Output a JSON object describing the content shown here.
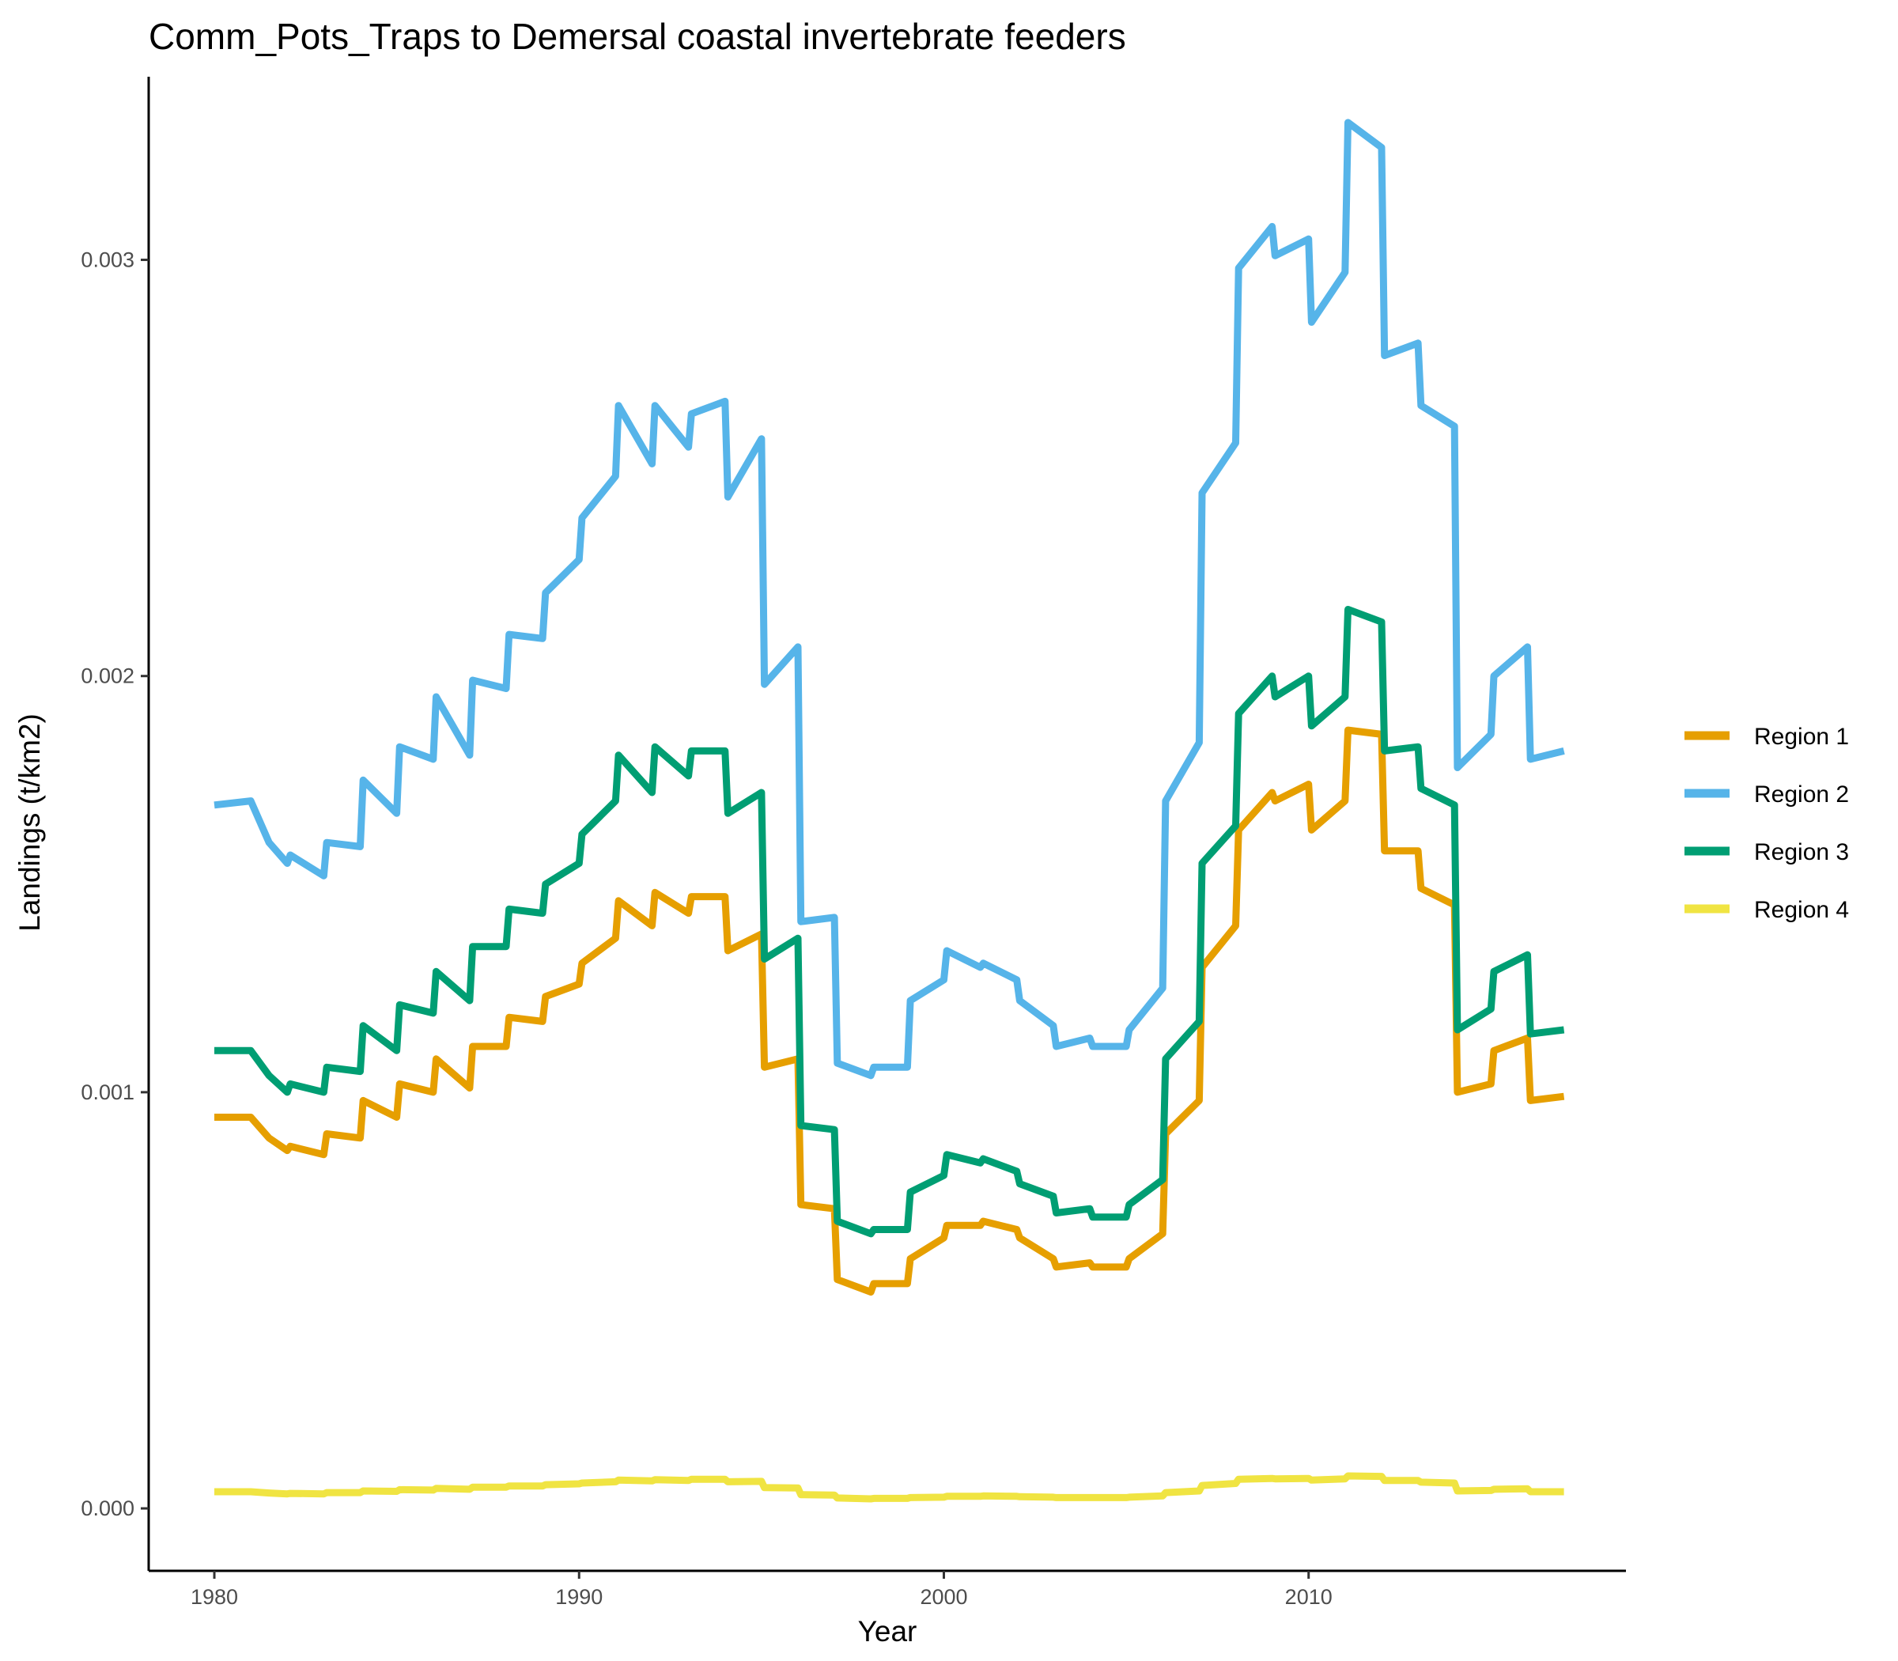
{
  "chart_data": {
    "type": "line",
    "title": "Comm_Pots_Traps to Demersal coastal invertebrate feeders",
    "xlabel": "Year",
    "ylabel": "Landings (t/km2)",
    "xlim": [
      1978.2,
      2018.7
    ],
    "ylim": [
      -0.00015,
      0.00344
    ],
    "x_ticks": [
      1980,
      1990,
      2000,
      2010
    ],
    "x_tick_labels": [
      "1980",
      "1990",
      "2000",
      "2010"
    ],
    "y_ticks": [
      0,
      0.001,
      0.002,
      0.003
    ],
    "y_tick_labels": [
      "0.000",
      "0.001",
      "0.002",
      "0.003"
    ],
    "grid": false,
    "legend_position": "right",
    "series": [
      {
        "name": "Region 1",
        "color": "#E69F00",
        "x": [
          1980,
          1981,
          1981.5,
          1982,
          1982.08,
          1983,
          1983.08,
          1984,
          1984.08,
          1985,
          1985.08,
          1986,
          1986.08,
          1987,
          1987.08,
          1988,
          1988.08,
          1989,
          1989.08,
          1990,
          1990.08,
          1991,
          1991.08,
          1992,
          1992.08,
          1993,
          1993.08,
          1994,
          1994.08,
          1995,
          1995.08,
          1996,
          1996.08,
          1997,
          1997.08,
          1998,
          1998.08,
          1999,
          1999.08,
          2000,
          2000.08,
          2001,
          2001.08,
          2002,
          2002.08,
          2003,
          2003.08,
          2004,
          2004.08,
          2005,
          2005.08,
          2006,
          2006.08,
          2007,
          2007.08,
          2008,
          2008.08,
          2009,
          2009.08,
          2010,
          2010.08,
          2011,
          2011.08,
          2012,
          2012.08,
          2013,
          2013.08,
          2014,
          2014.08,
          2015,
          2015.08,
          2016,
          2016.08,
          2017
        ],
        "y": [
          0.00094,
          0.00094,
          0.00089,
          0.00086,
          0.00087,
          0.00085,
          0.0009,
          0.00089,
          0.00098,
          0.00094,
          0.00102,
          0.001,
          0.00108,
          0.00101,
          0.00111,
          0.00111,
          0.00118,
          0.00117,
          0.00123,
          0.00126,
          0.00131,
          0.00137,
          0.00146,
          0.0014,
          0.00148,
          0.00143,
          0.00147,
          0.00147,
          0.00134,
          0.00138,
          0.00106,
          0.00108,
          0.00073,
          0.00072,
          0.00055,
          0.00052,
          0.00054,
          0.00054,
          0.0006,
          0.00065,
          0.00068,
          0.00068,
          0.00069,
          0.00067,
          0.00065,
          0.0006,
          0.00058,
          0.00059,
          0.00058,
          0.00058,
          0.0006,
          0.00066,
          0.0009,
          0.00098,
          0.0013,
          0.0014,
          0.00163,
          0.00172,
          0.0017,
          0.00174,
          0.00163,
          0.0017,
          0.00187,
          0.00186,
          0.00158,
          0.00158,
          0.00149,
          0.00145,
          0.001,
          0.00102,
          0.0011,
          0.00113,
          0.00098,
          0.00099
        ]
      },
      {
        "name": "Region 2",
        "color": "#56B4E9",
        "x": [
          1980,
          1981,
          1981.5,
          1982,
          1982.08,
          1983,
          1983.08,
          1984,
          1984.08,
          1985,
          1985.08,
          1986,
          1986.08,
          1987,
          1987.08,
          1988,
          1988.08,
          1989,
          1989.08,
          1990,
          1990.08,
          1991,
          1991.08,
          1992,
          1992.08,
          1993,
          1993.08,
          1994,
          1994.08,
          1995,
          1995.08,
          1996,
          1996.08,
          1997,
          1997.08,
          1998,
          1998.08,
          1999,
          1999.08,
          2000,
          2000.08,
          2001,
          2001.08,
          2002,
          2002.08,
          2003,
          2003.08,
          2004,
          2004.08,
          2005,
          2005.08,
          2006,
          2006.08,
          2007,
          2007.08,
          2008,
          2008.08,
          2009,
          2009.08,
          2010,
          2010.08,
          2011,
          2011.08,
          2012,
          2012.08,
          2013,
          2013.08,
          2014,
          2014.08,
          2015,
          2015.08,
          2016,
          2016.08,
          2017
        ],
        "y": [
          0.00169,
          0.0017,
          0.0016,
          0.00155,
          0.00157,
          0.00152,
          0.0016,
          0.00159,
          0.00175,
          0.00167,
          0.00183,
          0.0018,
          0.00195,
          0.00181,
          0.00199,
          0.00197,
          0.0021,
          0.00209,
          0.0022,
          0.00228,
          0.00238,
          0.00248,
          0.00265,
          0.00251,
          0.00265,
          0.00255,
          0.00263,
          0.00266,
          0.00243,
          0.00257,
          0.00198,
          0.00207,
          0.00141,
          0.00142,
          0.00107,
          0.00104,
          0.00106,
          0.00106,
          0.00122,
          0.00127,
          0.00134,
          0.0013,
          0.00131,
          0.00127,
          0.00122,
          0.00116,
          0.00111,
          0.00113,
          0.00111,
          0.00111,
          0.00115,
          0.00125,
          0.0017,
          0.00184,
          0.00244,
          0.00256,
          0.00298,
          0.00308,
          0.00301,
          0.00305,
          0.00285,
          0.00297,
          0.00333,
          0.00327,
          0.00277,
          0.0028,
          0.00265,
          0.0026,
          0.00178,
          0.00186,
          0.002,
          0.00207,
          0.0018,
          0.00182
        ]
      },
      {
        "name": "Region 3",
        "color": "#009E73",
        "x": [
          1980,
          1981,
          1981.5,
          1982,
          1982.08,
          1983,
          1983.08,
          1984,
          1984.08,
          1985,
          1985.08,
          1986,
          1986.08,
          1987,
          1987.08,
          1988,
          1988.08,
          1989,
          1989.08,
          1990,
          1990.08,
          1991,
          1991.08,
          1992,
          1992.08,
          1993,
          1993.08,
          1994,
          1994.08,
          1995,
          1995.08,
          1996,
          1996.08,
          1997,
          1997.08,
          1998,
          1998.08,
          1999,
          1999.08,
          2000,
          2000.08,
          2001,
          2001.08,
          2002,
          2002.08,
          2003,
          2003.08,
          2004,
          2004.08,
          2005,
          2005.08,
          2006,
          2006.08,
          2007,
          2007.08,
          2008,
          2008.08,
          2009,
          2009.08,
          2010,
          2010.08,
          2011,
          2011.08,
          2012,
          2012.08,
          2013,
          2013.08,
          2014,
          2014.08,
          2015,
          2015.08,
          2016,
          2016.08,
          2017
        ],
        "y": [
          0.0011,
          0.0011,
          0.00104,
          0.001,
          0.00102,
          0.001,
          0.00106,
          0.00105,
          0.00116,
          0.0011,
          0.00121,
          0.00119,
          0.00129,
          0.00122,
          0.00135,
          0.00135,
          0.00144,
          0.00143,
          0.0015,
          0.00155,
          0.00162,
          0.0017,
          0.00181,
          0.00172,
          0.00183,
          0.00176,
          0.00182,
          0.00182,
          0.00167,
          0.00172,
          0.00132,
          0.00137,
          0.00092,
          0.00091,
          0.00069,
          0.00066,
          0.00067,
          0.00067,
          0.00076,
          0.0008,
          0.00085,
          0.00083,
          0.00084,
          0.00081,
          0.00078,
          0.00075,
          0.00071,
          0.00072,
          0.0007,
          0.0007,
          0.00073,
          0.00079,
          0.00108,
          0.00117,
          0.00155,
          0.00164,
          0.00191,
          0.002,
          0.00195,
          0.002,
          0.00188,
          0.00195,
          0.00216,
          0.00213,
          0.00182,
          0.00183,
          0.00173,
          0.00169,
          0.00115,
          0.0012,
          0.00129,
          0.00133,
          0.00114,
          0.00115
        ]
      },
      {
        "name": "Region 4",
        "color": "#F0E442",
        "x": [
          1980,
          1981,
          1981.5,
          1982,
          1982.08,
          1983,
          1983.08,
          1984,
          1984.08,
          1985,
          1985.08,
          1986,
          1986.08,
          1987,
          1987.08,
          1988,
          1988.08,
          1989,
          1989.08,
          1990,
          1990.08,
          1991,
          1991.08,
          1992,
          1992.08,
          1993,
          1993.08,
          1994,
          1994.08,
          1995,
          1995.08,
          1996,
          1996.08,
          1997,
          1997.08,
          1998,
          1998.08,
          1999,
          1999.08,
          2000,
          2000.08,
          2001,
          2001.08,
          2002,
          2002.08,
          2003,
          2003.08,
          2004,
          2004.08,
          2005,
          2005.08,
          2006,
          2006.08,
          2007,
          2007.08,
          2008,
          2008.08,
          2009,
          2009.08,
          2010,
          2010.08,
          2011,
          2011.08,
          2012,
          2012.08,
          2013,
          2013.08,
          2014,
          2014.08,
          2015,
          2015.08,
          2016,
          2016.08,
          2017
        ],
        "y": [
          4e-05,
          4e-05,
          3.7e-05,
          3.5e-05,
          3.6e-05,
          3.5e-05,
          3.8e-05,
          3.8e-05,
          4.2e-05,
          4.1e-05,
          4.5e-05,
          4.4e-05,
          4.8e-05,
          4.6e-05,
          5.1e-05,
          5.1e-05,
          5.4e-05,
          5.4e-05,
          5.7e-05,
          5.9e-05,
          6.1e-05,
          6.4e-05,
          6.8e-05,
          6.6e-05,
          6.9e-05,
          6.7e-05,
          7e-05,
          7e-05,
          6.4e-05,
          6.5e-05,
          5e-05,
          4.9e-05,
          3.3e-05,
          3.2e-05,
          2.5e-05,
          2.3e-05,
          2.4e-05,
          2.4e-05,
          2.6e-05,
          2.7e-05,
          2.9e-05,
          2.9e-05,
          3e-05,
          2.9e-05,
          2.8e-05,
          2.7e-05,
          2.6e-05,
          2.6e-05,
          2.6e-05,
          2.6e-05,
          2.7e-05,
          3e-05,
          3.8e-05,
          4.2e-05,
          5.5e-05,
          6e-05,
          7e-05,
          7.2e-05,
          7.1e-05,
          7.2e-05,
          6.8e-05,
          7.1e-05,
          7.8e-05,
          7.7e-05,
          6.7e-05,
          6.7e-05,
          6.3e-05,
          6.1e-05,
          4.2e-05,
          4.3e-05,
          4.6e-05,
          4.7e-05,
          4e-05,
          4e-05
        ]
      }
    ]
  }
}
